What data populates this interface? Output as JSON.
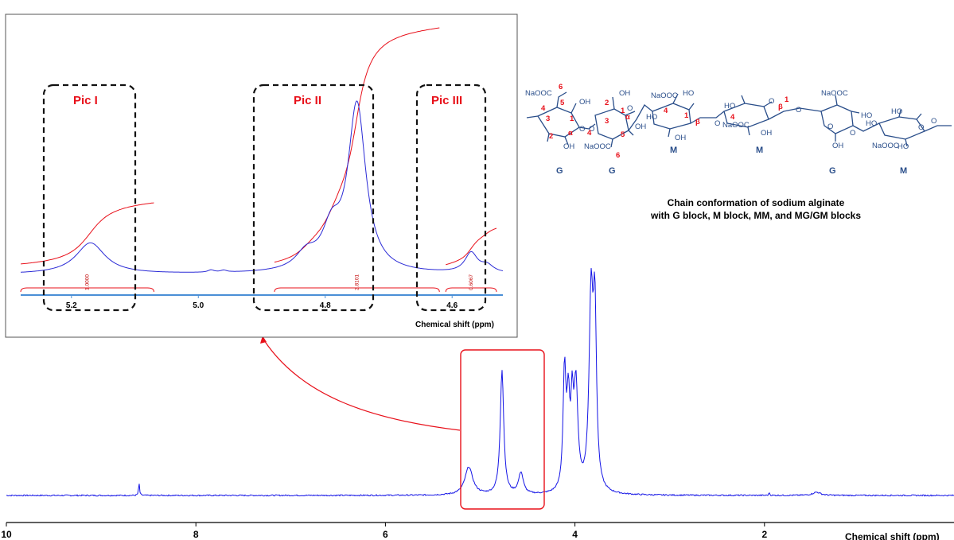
{
  "chart_data": [
    {
      "type": "line",
      "name": "main-spectrum",
      "xlabel": "Chemical shift (ppm)",
      "x_axis_reversed": true,
      "xlim": [
        10,
        0
      ],
      "x_ticks": [
        10,
        8,
        6,
        4,
        2
      ],
      "x_tick_labels": [
        "10",
        "8",
        "6",
        "4",
        "2"
      ],
      "series": [
        {
          "color": "#1414e6",
          "peaks": [
            {
              "x": 8.6,
              "height": 0.06,
              "width": 0.006
            },
            {
              "x": 5.12,
              "height": 0.13,
              "width": 0.05
            },
            {
              "x": 4.77,
              "height": 0.58,
              "width": 0.022
            },
            {
              "x": 4.57,
              "height": 0.1,
              "width": 0.03
            },
            {
              "x": 4.11,
              "height": 0.55,
              "width": 0.018
            },
            {
              "x": 4.07,
              "height": 0.38,
              "width": 0.018
            },
            {
              "x": 4.03,
              "height": 0.34,
              "width": 0.016
            },
            {
              "x": 3.99,
              "height": 0.48,
              "width": 0.025
            },
            {
              "x": 3.83,
              "height": 0.88,
              "width": 0.025
            },
            {
              "x": 3.79,
              "height": 0.78,
              "width": 0.02
            },
            {
              "x": 1.95,
              "height": 0.015,
              "width": 0.005
            },
            {
              "x": 1.45,
              "height": 0.015,
              "width": 0.05
            }
          ]
        }
      ],
      "highlight_box": {
        "x_range": [
          5.3,
          4.43
        ],
        "color": "#e8101a"
      }
    },
    {
      "type": "line",
      "name": "inset-spectrum",
      "xlabel": "Chemical shift (ppm)",
      "x_axis_reversed": true,
      "xlim": [
        5.28,
        4.52
      ],
      "x_ticks": [
        5.2,
        5.0,
        4.8,
        4.6
      ],
      "x_tick_labels": [
        "5.2",
        "5.0",
        "4.8",
        "4.6"
      ],
      "series": [
        {
          "color": "#2b2bd6",
          "peaks": [
            {
              "x": 5.17,
              "height": 0.135,
              "width": 0.028
            },
            {
              "x": 4.75,
              "height": 0.72,
              "width": 0.017
            },
            {
              "x": 4.79,
              "height": 0.16,
              "width": 0.018
            },
            {
              "x": 4.83,
              "height": 0.07,
              "width": 0.02
            },
            {
              "x": 4.57,
              "height": 0.085,
              "width": 0.012
            },
            {
              "x": 4.545,
              "height": 0.03,
              "width": 0.012
            },
            {
              "x": 4.98,
              "height": 0.01,
              "width": 0.006
            },
            {
              "x": 4.96,
              "height": 0.008,
              "width": 0.006
            }
          ]
        }
      ],
      "integration_curve_color": "#e8101a",
      "integrals": [
        {
          "label": "Pic I",
          "range": [
            5.28,
            5.07
          ],
          "value": "1.0000"
        },
        {
          "label": "Pic II",
          "range": [
            4.88,
            4.62
          ],
          "value": "2.8101"
        },
        {
          "label": "Pic III",
          "range": [
            4.61,
            4.53
          ],
          "value": "0.6067"
        }
      ]
    }
  ],
  "inset": {
    "pic_labels": [
      "Pic I",
      "Pic II",
      "Pic III"
    ]
  },
  "structure": {
    "block_labels": [
      "G",
      "G",
      "M",
      "M",
      "G",
      "M"
    ],
    "caption_line1": "Chain conformation of sodium alginate",
    "caption_line2": "with G block, M block, MM, and MG/GM blocks",
    "group_labels": {
      "naooc": "NaOOC",
      "oh": "OH",
      "ho": "HO",
      "o": "O",
      "alpha": "α",
      "beta": "β"
    },
    "atom_numbers": [
      "6",
      "5",
      "4",
      "3",
      "2",
      "1",
      "1",
      "2",
      "3",
      "4",
      "5",
      "6",
      "4",
      "1",
      "4",
      "1"
    ]
  },
  "colors": {
    "spectrum": "#1414e6",
    "integration": "#e8101a",
    "highlight": "#e8101a",
    "structure": "#2a4e8a",
    "axis": "#000000",
    "inset_axis": "#4a8fd6"
  }
}
